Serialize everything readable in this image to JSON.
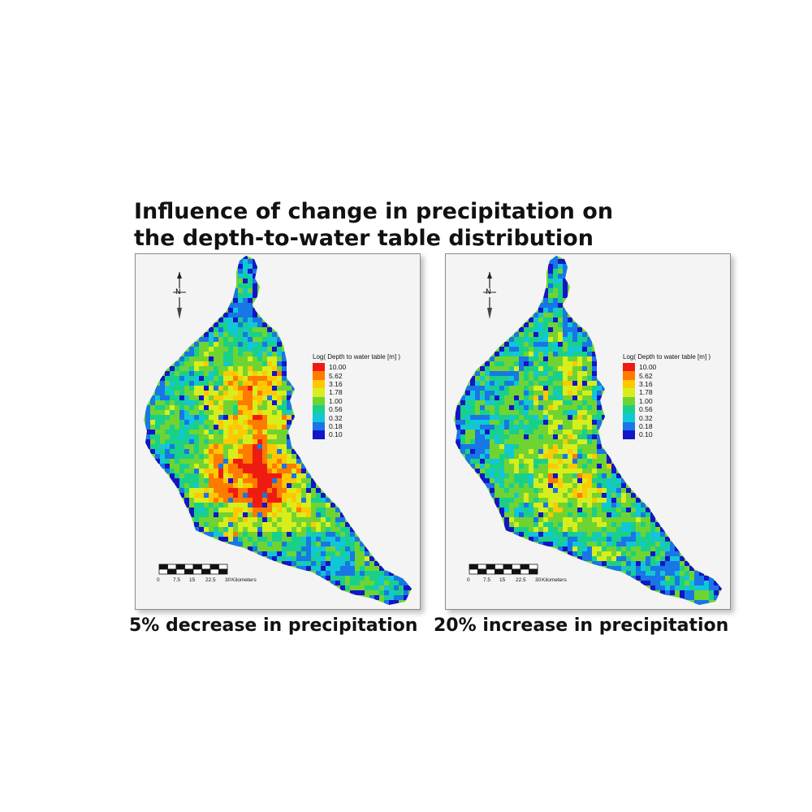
{
  "title": {
    "line1": "Influence of change in precipitation on",
    "line2": "the depth-to-water table distribution"
  },
  "colors": {
    "background": "#ffffff",
    "panel_background": "#f4f4f4"
  },
  "panels": [
    {
      "caption": "5% decrease in precipitation",
      "red_share": 0.42,
      "north_label": "N",
      "legend": {
        "title": "Log( Depth to water table [m] )",
        "entries": [
          {
            "label": "10.00",
            "color": "#ee1c10"
          },
          {
            "label": "5.62",
            "color": "#ff7a00"
          },
          {
            "label": "3.16",
            "color": "#ffc800"
          },
          {
            "label": "1.78",
            "color": "#d8ee1c"
          },
          {
            "label": "1.00",
            "color": "#6fd432"
          },
          {
            "label": "0.56",
            "color": "#19d08a"
          },
          {
            "label": "0.32",
            "color": "#12c6d8"
          },
          {
            "label": "0.18",
            "color": "#1876e6"
          },
          {
            "label": "0.10",
            "color": "#1414c8"
          }
        ]
      },
      "scale": {
        "ticks": [
          "0",
          "7.5",
          "15",
          "22.5",
          "30"
        ],
        "unit": "Kilometers"
      }
    },
    {
      "caption": "20% increase in precipitation",
      "red_share": 0.22,
      "north_label": "N",
      "legend": {
        "title": "Log( Depth to water table [m] )",
        "entries": [
          {
            "label": "10.00",
            "color": "#ee1c10"
          },
          {
            "label": "5.62",
            "color": "#ff7a00"
          },
          {
            "label": "3.16",
            "color": "#ffc800"
          },
          {
            "label": "1.78",
            "color": "#d8ee1c"
          },
          {
            "label": "1.00",
            "color": "#6fd432"
          },
          {
            "label": "0.56",
            "color": "#19d08a"
          },
          {
            "label": "0.32",
            "color": "#12c6d8"
          },
          {
            "label": "0.18",
            "color": "#1876e6"
          },
          {
            "label": "0.10",
            "color": "#1414c8"
          }
        ]
      },
      "scale": {
        "ticks": [
          "0",
          "7.5",
          "15",
          "22.5",
          "30"
        ],
        "unit": "Kilometers"
      }
    }
  ]
}
